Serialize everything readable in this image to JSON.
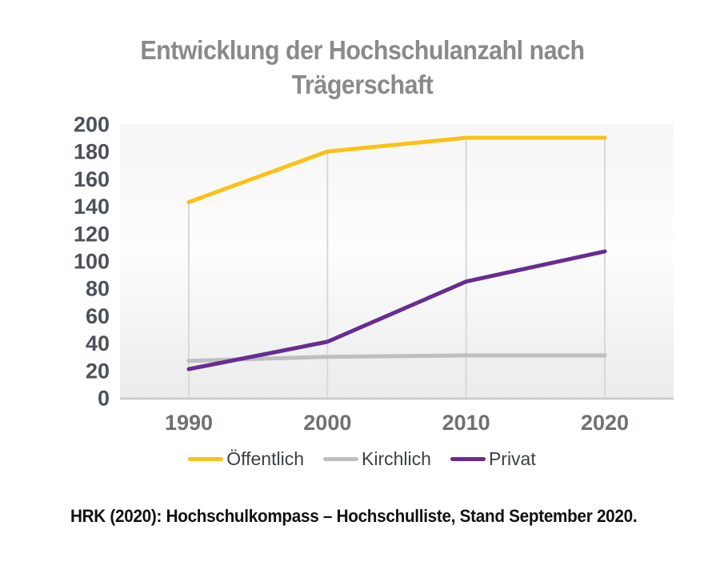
{
  "title": "Entwicklung der Hochschulanzahl nach Trägerschaft",
  "source": "HRK (2020): Hochschulkompass – Hochschulliste, Stand September 2020.",
  "colors": {
    "oeffentlich": "#FBC116",
    "kirchlich": "#BFBFBF",
    "privat": "#662D91",
    "dropline": "#d8d8d8",
    "axis_line": "#c9c9c9",
    "plot_bg_top": "#f6f6f6",
    "plot_bg_mid": "#fdfdfd",
    "plot_bg_bottom": "#ebebeb"
  },
  "chart_data": {
    "type": "line",
    "x": [
      "1990",
      "2000",
      "2010",
      "2020"
    ],
    "series": [
      {
        "name": "Öffentlich",
        "color": "#FBC116",
        "values": [
          143,
          180,
          190,
          190
        ]
      },
      {
        "name": "Kirchlich",
        "color": "#BFBFBF",
        "values": [
          27,
          30,
          31,
          31
        ]
      },
      {
        "name": "Privat",
        "color": "#662D91",
        "values": [
          21,
          41,
          85,
          107
        ]
      }
    ],
    "title": "Entwicklung der Hochschulanzahl nach Trägerschaft",
    "xlabel": "",
    "ylabel": "",
    "ylim": [
      0,
      200
    ],
    "ytick_step": 20,
    "grid": "vertical droplines from top series to x-axis, no horizontal gridlines",
    "legend_position": "bottom"
  },
  "legend": {
    "items": [
      {
        "label": "Öffentlich",
        "color": "#FBC116"
      },
      {
        "label": "Kirchlich",
        "color": "#BFBFBF"
      },
      {
        "label": "Privat",
        "color": "#662D91"
      }
    ]
  }
}
